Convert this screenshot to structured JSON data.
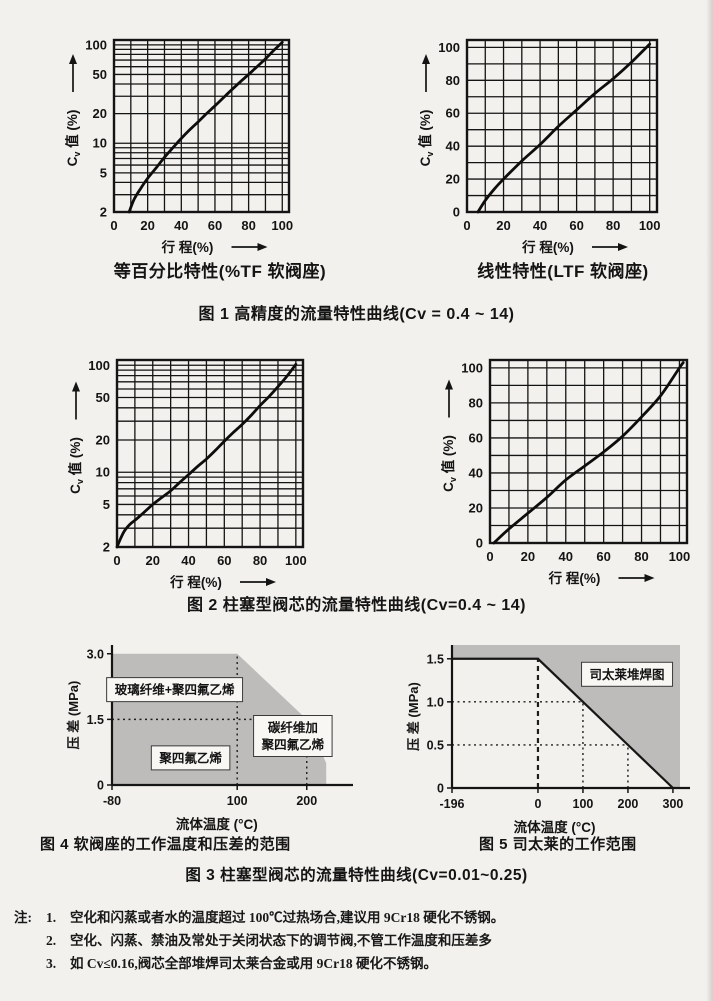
{
  "subtitle_left_note": "subtitles are chart titles bound from chart_data",
  "captions": {
    "fig1": "图 1   高精度的流量特性曲线(Cv = 0.4 ~ 14)",
    "fig2": "图 2   柱塞型阀芯的流量特性曲线(Cv=0.4 ~ 14)",
    "fig3": "图 3  柱塞型阀芯的流量特性曲线(Cv=0.01~0.25)",
    "fig4": "图 4   软阀座的工作温度和压差的范围",
    "fig5": "图 5   司太莱的工作范围"
  },
  "notes": {
    "label": "注: ",
    "items": [
      {
        "num": "1.",
        "text": "空化和闪蒸或者水的温度超过 100℃过热场合,建议用 9Cr18 硬化不锈钢。"
      },
      {
        "num": "2.",
        "text": "空化、闪蒸、禁油及常处于关闭状态下的调节阀,不管工作温度和压差多"
      },
      {
        "num": "3.",
        "text": "如 Cv≤0.16,阀芯全部堆焊司太莱合金或用 9Cr18 硬化不锈钢。"
      }
    ]
  },
  "colors": {
    "ink": "#141414",
    "curve": "#0d0d0d",
    "region_gray": "#bdbcba",
    "paper": "#f2f1ed",
    "label_box": "#f8f7f4"
  },
  "chart_data": [
    {
      "id": "fig1_equal_percentage",
      "type": "line",
      "title": "等百分比特性(%TF 软阀座)",
      "xlabel": "行  程(%)",
      "ylabel_main": "值 (%)",
      "ylabel_prefix": "Cv",
      "x_scale": "linear",
      "y_scale": "log",
      "xlim": [
        0,
        104
      ],
      "ylim": [
        2,
        112
      ],
      "x_grid": [
        0,
        10,
        20,
        30,
        40,
        50,
        60,
        70,
        80,
        90,
        100
      ],
      "y_grid": [
        2,
        3,
        4,
        5,
        6,
        7,
        8,
        9,
        10,
        20,
        30,
        40,
        50,
        60,
        70,
        80,
        90,
        100
      ],
      "x_ticks": [
        0,
        20,
        40,
        60,
        80,
        100
      ],
      "y_ticks": [
        100,
        50,
        20,
        10,
        5,
        2
      ],
      "points": [
        [
          9,
          2
        ],
        [
          12,
          2.7
        ],
        [
          16,
          3.5
        ],
        [
          20,
          4.4
        ],
        [
          25,
          5.6
        ],
        [
          30,
          7.2
        ],
        [
          35,
          9
        ],
        [
          40,
          11.2
        ],
        [
          45,
          13.7
        ],
        [
          50,
          16.5
        ],
        [
          55,
          20
        ],
        [
          60,
          24
        ],
        [
          65,
          29
        ],
        [
          70,
          35
        ],
        [
          75,
          42
        ],
        [
          80,
          50
        ],
        [
          85,
          60
        ],
        [
          90,
          72
        ],
        [
          95,
          88
        ],
        [
          100,
          106
        ]
      ]
    },
    {
      "id": "fig1_linear",
      "type": "line",
      "title": "线性特性(LTF 软阀座)",
      "xlabel": "行  程(%)",
      "ylabel_main": "值 (%)",
      "ylabel_prefix": "Cv",
      "x_scale": "linear",
      "y_scale": "linear",
      "xlim": [
        0,
        104
      ],
      "ylim": [
        0,
        104.5
      ],
      "x_grid": [
        0,
        10,
        20,
        30,
        40,
        50,
        60,
        70,
        80,
        90,
        100
      ],
      "y_grid": [
        0,
        10,
        20,
        30,
        40,
        50,
        60,
        70,
        80,
        90,
        100
      ],
      "x_ticks": [
        0,
        20,
        40,
        60,
        80,
        100
      ],
      "y_ticks": [
        0,
        20,
        40,
        60,
        80,
        100
      ],
      "points": [
        [
          6,
          0
        ],
        [
          10,
          7
        ],
        [
          15,
          14
        ],
        [
          20,
          20
        ],
        [
          30,
          31
        ],
        [
          40,
          41
        ],
        [
          50,
          52
        ],
        [
          60,
          62
        ],
        [
          70,
          72
        ],
        [
          80,
          81
        ],
        [
          90,
          91
        ],
        [
          100,
          102
        ]
      ]
    },
    {
      "id": "fig2_log",
      "type": "line",
      "title": "",
      "xlabel": "行  程(%)",
      "ylabel_main": "值 (%)",
      "ylabel_prefix": "Cv",
      "x_scale": "linear",
      "y_scale": "log",
      "xlim": [
        0,
        104
      ],
      "ylim": [
        2,
        112
      ],
      "x_grid": [
        0,
        10,
        20,
        30,
        40,
        50,
        60,
        70,
        80,
        90,
        100
      ],
      "y_grid": [
        2,
        3,
        4,
        5,
        6,
        7,
        8,
        9,
        10,
        20,
        30,
        40,
        50,
        60,
        70,
        80,
        90,
        100
      ],
      "x_ticks": [
        0,
        20,
        40,
        60,
        80,
        100
      ],
      "y_ticks": [
        100,
        50,
        20,
        10,
        5,
        2
      ],
      "points": [
        [
          0,
          2
        ],
        [
          2,
          2.4
        ],
        [
          4,
          2.8
        ],
        [
          6,
          3.1
        ],
        [
          8,
          3.35
        ],
        [
          10,
          3.55
        ],
        [
          15,
          4.2
        ],
        [
          20,
          5
        ],
        [
          25,
          5.8
        ],
        [
          30,
          6.7
        ],
        [
          35,
          8
        ],
        [
          40,
          9.5
        ],
        [
          45,
          11.3
        ],
        [
          50,
          13.3
        ],
        [
          55,
          16
        ],
        [
          60,
          19.5
        ],
        [
          65,
          23.5
        ],
        [
          70,
          28
        ],
        [
          75,
          34
        ],
        [
          80,
          42
        ],
        [
          85,
          51
        ],
        [
          90,
          63
        ],
        [
          95,
          79
        ],
        [
          100,
          102
        ]
      ]
    },
    {
      "id": "fig2_linear",
      "type": "line",
      "title": "",
      "xlabel": "行  程(%)",
      "ylabel_main": "值 (%)",
      "ylabel_prefix": "Cv",
      "x_scale": "linear",
      "y_scale": "linear",
      "xlim": [
        0,
        104
      ],
      "ylim": [
        0,
        104.5
      ],
      "x_grid": [
        0,
        10,
        20,
        30,
        40,
        50,
        60,
        70,
        80,
        90,
        100
      ],
      "y_grid": [
        0,
        10,
        20,
        30,
        40,
        50,
        60,
        70,
        80,
        90,
        100
      ],
      "x_ticks": [
        0,
        20,
        40,
        60,
        80,
        100
      ],
      "y_ticks": [
        0,
        20,
        40,
        60,
        80,
        100
      ],
      "points": [
        [
          2,
          0
        ],
        [
          10,
          8
        ],
        [
          20,
          17
        ],
        [
          30,
          26
        ],
        [
          40,
          36
        ],
        [
          50,
          44
        ],
        [
          60,
          52
        ],
        [
          70,
          61
        ],
        [
          80,
          72
        ],
        [
          90,
          84
        ],
        [
          100,
          100
        ],
        [
          102,
          103
        ]
      ]
    },
    {
      "id": "fig4_region",
      "type": "area",
      "title": "",
      "xlabel": "流体温度 (°C)",
      "ylabel": "压  差 (MPa)",
      "ylim": [
        0,
        3.2
      ],
      "x_map": [
        [
          -80,
          0
        ],
        [
          255,
          1
        ]
      ],
      "x_ticks": [
        {
          "v": -80,
          "label": "-80"
        },
        {
          "v": 100,
          "label": "100"
        },
        {
          "v": 200,
          "label": "200"
        }
      ],
      "y_ticks": [
        {
          "v": 0,
          "label": "0"
        },
        {
          "v": 1.5,
          "label": "1.5"
        },
        {
          "v": 3.0,
          "label": "3.0"
        }
      ],
      "region": [
        [
          -80,
          0
        ],
        [
          -80,
          3
        ],
        [
          100,
          3
        ],
        [
          200,
          1.5
        ],
        [
          228,
          0.5
        ],
        [
          228,
          0
        ]
      ],
      "guides": [
        {
          "d": "v",
          "at": 100,
          "a": 0,
          "b": 3.0,
          "s": "dot"
        },
        {
          "d": "h",
          "at": 1.5,
          "a": -80,
          "b": 200,
          "s": "dot"
        },
        {
          "d": "v",
          "at": 200,
          "a": 0,
          "b": 1.5,
          "s": "dot"
        }
      ],
      "labels": [
        {
          "text": "玻璃纤维+聚四氟乙烯",
          "x": 10,
          "y": 2.18
        },
        {
          "text": "碳纤维加\n聚四氟乙烯",
          "x": 180,
          "y": 1.12
        },
        {
          "text": "聚四氟乙烯",
          "x": 33,
          "y": 0.62
        }
      ]
    },
    {
      "id": "fig5_region",
      "type": "area",
      "title": "",
      "xlabel": "流体温度 (°C)",
      "ylabel": "压  差 (MPa)",
      "ylim": [
        0,
        1.66
      ],
      "x_map": [
        [
          -196,
          0
        ],
        [
          0,
          0.377
        ],
        [
          300,
          0.969
        ],
        [
          316,
          1
        ]
      ],
      "x_ticks": [
        {
          "v": -196,
          "label": "-196"
        },
        {
          "v": 0,
          "label": "0"
        },
        {
          "v": 100,
          "label": "100"
        },
        {
          "v": 200,
          "label": "200"
        },
        {
          "v": 300,
          "label": "300"
        }
      ],
      "y_ticks": [
        {
          "v": 0,
          "label": "0"
        },
        {
          "v": 0.5,
          "label": "0.5"
        },
        {
          "v": 1.0,
          "label": "1.0"
        },
        {
          "v": 1.5,
          "label": "1.5"
        }
      ],
      "region": [
        [
          -196,
          1.66
        ],
        [
          316,
          1.66
        ],
        [
          316,
          0
        ],
        [
          300,
          0
        ],
        [
          0,
          1.5
        ],
        [
          -196,
          1.5
        ]
      ],
      "boundary": [
        [
          -196,
          1.5
        ],
        [
          0,
          1.5
        ],
        [
          300,
          0
        ]
      ],
      "guides": [
        {
          "d": "v",
          "at": 0,
          "a": 0,
          "b": 1.5,
          "s": "dash"
        },
        {
          "d": "h",
          "at": 1.0,
          "a": -196,
          "b": 100,
          "s": "dot"
        },
        {
          "d": "v",
          "at": 100,
          "a": 0,
          "b": 1.0,
          "s": "dot"
        },
        {
          "d": "h",
          "at": 0.5,
          "a": -196,
          "b": 200,
          "s": "dot"
        },
        {
          "d": "v",
          "at": 200,
          "a": 0,
          "b": 0.5,
          "s": "dot"
        }
      ],
      "labels": [
        {
          "text": "司太莱堆焊图",
          "x": 198,
          "y": 1.32
        }
      ]
    }
  ]
}
